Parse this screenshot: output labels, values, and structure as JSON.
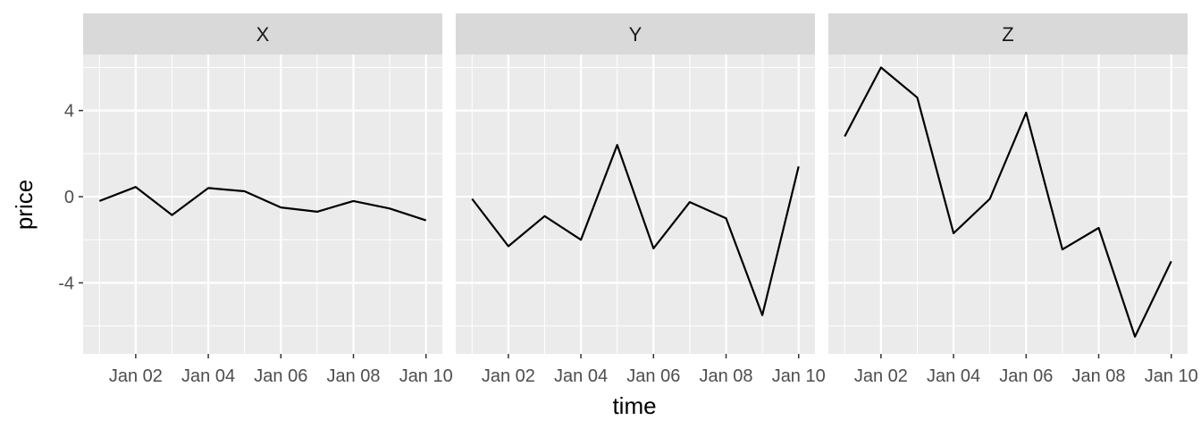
{
  "chart_data": {
    "type": "line",
    "facet": "wrap",
    "panels": [
      "X",
      "Y",
      "Z"
    ],
    "x": [
      "2024-01-01",
      "2024-01-02",
      "2024-01-03",
      "2024-01-04",
      "2024-01-05",
      "2024-01-06",
      "2024-01-07",
      "2024-01-08",
      "2024-01-09",
      "2024-01-10"
    ],
    "series": [
      {
        "name": "X",
        "values": [
          -0.2,
          0.45,
          -0.85,
          0.4,
          0.25,
          -0.5,
          -0.7,
          -0.2,
          -0.55,
          -1.1
        ]
      },
      {
        "name": "Y",
        "values": [
          -0.1,
          -2.3,
          -0.9,
          -2.0,
          2.4,
          -2.4,
          -0.25,
          -1.0,
          -5.5,
          1.4
        ]
      },
      {
        "name": "Z",
        "values": [
          2.8,
          6.0,
          4.6,
          -1.7,
          -0.1,
          3.9,
          -2.45,
          -1.45,
          -6.5,
          -3.0
        ]
      }
    ],
    "xlabel": "time",
    "ylabel": "price",
    "x_tick_labels": [
      "Jan 02",
      "Jan 04",
      "Jan 06",
      "Jan 08",
      "Jan 10"
    ],
    "y_ticks": [
      4,
      0,
      -4
    ],
    "y_tick_labels": [
      "4",
      "0",
      "-4"
    ],
    "ylim": [
      -7.3,
      6.6
    ],
    "grid": true,
    "line_color": "#000000",
    "panel_background": "#ebebeb",
    "strip_background": "#d9d9d9",
    "grid_color": "#ffffff"
  }
}
